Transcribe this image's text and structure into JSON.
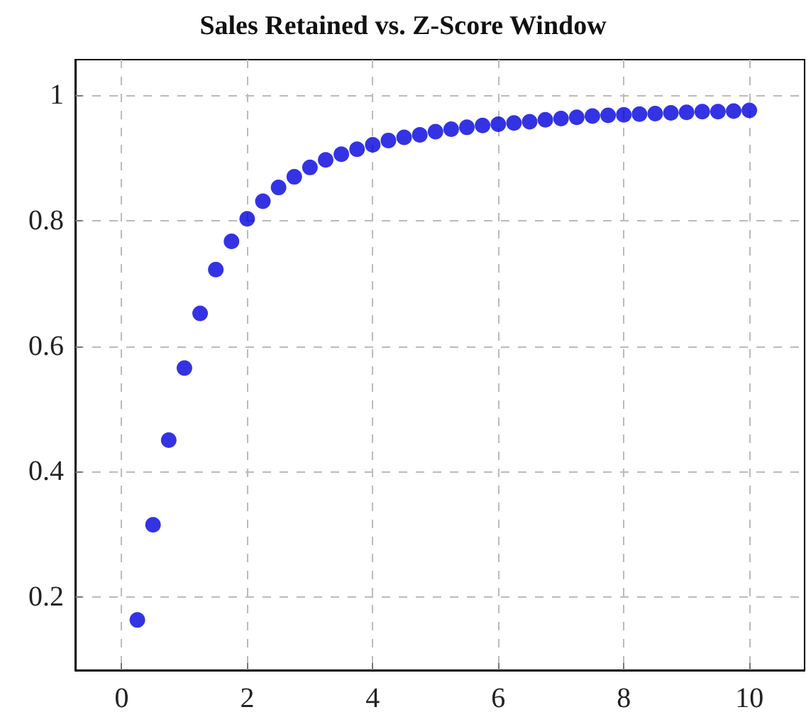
{
  "chart_data": {
    "type": "scatter",
    "title": "Sales Retained vs. Z-Score Window",
    "x": [
      0.25,
      0.5,
      0.75,
      1,
      1.25,
      1.5,
      1.75,
      2,
      2.25,
      2.5,
      2.75,
      3,
      3.25,
      3.5,
      3.75,
      4,
      4.25,
      4.5,
      4.75,
      5,
      5.25,
      5.5,
      5.75,
      6,
      6.25,
      6.5,
      6.75,
      7,
      7.25,
      7.5,
      7.75,
      8,
      8.25,
      8.5,
      8.75,
      9,
      9.25,
      9.5,
      9.75,
      10
    ],
    "series": [
      {
        "color": "#0000dd",
        "values": [
          0.163,
          0.315,
          0.45,
          0.565,
          0.652,
          0.722,
          0.767,
          0.803,
          0.831,
          0.853,
          0.87,
          0.885,
          0.897,
          0.906,
          0.914,
          0.921,
          0.928,
          0.933,
          0.937,
          0.942,
          0.946,
          0.949,
          0.952,
          0.954,
          0.956,
          0.958,
          0.961,
          0.963,
          0.965,
          0.967,
          0.968,
          0.969,
          0.97,
          0.971,
          0.972,
          0.973,
          0.974,
          0.974,
          0.975,
          0.976
        ]
      }
    ],
    "xlim": [
      -0.74,
      10.88
    ],
    "ylim": [
      0.083,
      1.057
    ],
    "xticks": [
      0,
      2,
      4,
      6,
      8,
      10
    ],
    "yticks": [
      0.2,
      0.4,
      0.6,
      0.8,
      1
    ],
    "grid": true,
    "marker": "circle"
  }
}
